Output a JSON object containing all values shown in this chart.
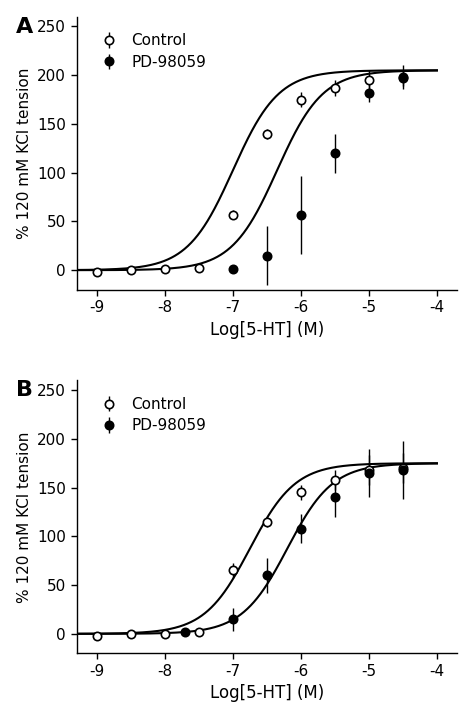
{
  "panel_A": {
    "control_x": [
      -9,
      -8.5,
      -8,
      -7.5,
      -7,
      -6.5,
      -6,
      -5.5,
      -5,
      -4.5
    ],
    "control_y": [
      -2,
      0,
      1,
      2,
      57,
      140,
      175,
      187,
      195,
      198
    ],
    "control_yerr": [
      2,
      1,
      2,
      3,
      5,
      5,
      8,
      8,
      10,
      12
    ],
    "pd_x": [
      -7,
      -6.5,
      -6,
      -5.5,
      -5,
      -4.5
    ],
    "pd_y": [
      1,
      15,
      57,
      120,
      182,
      197
    ],
    "pd_yerr": [
      4,
      30,
      40,
      20,
      10,
      8
    ],
    "control_ec50": -7.0,
    "control_hill": 1.3,
    "control_emax": 205,
    "pd_ec50": -6.35,
    "pd_hill": 1.3,
    "pd_emax": 205,
    "ylim": [
      -20,
      260
    ],
    "yticks": [
      0,
      50,
      100,
      150,
      200,
      250
    ],
    "panel_label": "A"
  },
  "panel_B": {
    "control_x": [
      -9,
      -8.5,
      -8,
      -7.5,
      -7,
      -6.5,
      -6,
      -5.5,
      -5,
      -4.5
    ],
    "control_y": [
      -2,
      0,
      0,
      2,
      65,
      115,
      145,
      158,
      168,
      170
    ],
    "control_yerr": [
      2,
      1,
      2,
      3,
      8,
      5,
      8,
      10,
      15,
      15
    ],
    "pd_x": [
      -7.7,
      -7,
      -6.5,
      -6,
      -5.5,
      -5,
      -4.5
    ],
    "pd_y": [
      2,
      15,
      60,
      108,
      140,
      165,
      168
    ],
    "pd_yerr": [
      3,
      12,
      18,
      15,
      20,
      25,
      30
    ],
    "control_ec50": -6.75,
    "control_hill": 1.3,
    "control_emax": 175,
    "pd_ec50": -6.2,
    "pd_hill": 1.3,
    "pd_emax": 175,
    "ylim": [
      -20,
      260
    ],
    "yticks": [
      0,
      50,
      100,
      150,
      200,
      250
    ],
    "panel_label": "B"
  },
  "xlabel": "Log[5-HT] (M)",
  "ylabel": "% 120 mM KCl tension",
  "xlim": [
    -9.3,
    -3.7
  ],
  "xtick_positions": [
    -9,
    -8,
    -7,
    -6,
    -5,
    -4
  ],
  "xtick_labels": [
    "-9",
    "-8",
    "-7",
    "-6",
    "-5",
    "-4"
  ],
  "legend_control": "Control",
  "legend_pd": "PD-98059",
  "bg_color": "#ffffff",
  "line_color": "#000000",
  "marker_size": 6,
  "line_width": 1.5
}
